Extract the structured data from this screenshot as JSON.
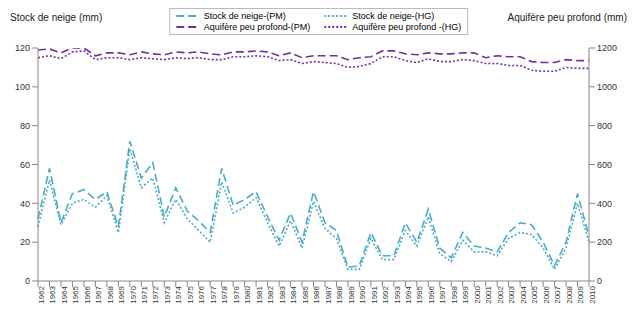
{
  "chart_data": {
    "type": "line",
    "y_label": "Stock de neige (mm)",
    "y2_label": "Aquifère peu profond (mm)",
    "categories": [
      "1962",
      "1963",
      "1964",
      "1965",
      "1966",
      "1967",
      "1968",
      "1969",
      "1970",
      "1971",
      "1972",
      "1973",
      "1974",
      "1975",
      "1976",
      "1977",
      "1978",
      "1979",
      "1980",
      "1981",
      "1982",
      "1983",
      "1984",
      "1985",
      "1986",
      "1987",
      "1988",
      "1989",
      "1990",
      "1991",
      "1992",
      "1993",
      "1994",
      "1995",
      "1996",
      "1997",
      "1998",
      "1999",
      "2000",
      "2001",
      "2002",
      "2003",
      "2004",
      "2005",
      "2006",
      "2007",
      "2008",
      "2009",
      "2010"
    ],
    "ylim": [
      0,
      120
    ],
    "yticks": [
      0,
      20,
      40,
      60,
      80,
      100,
      120
    ],
    "y2lim": [
      0,
      1200
    ],
    "y2ticks": [
      0,
      200,
      400,
      600,
      800,
      1000,
      1200
    ],
    "grid": false,
    "legend": "top",
    "series": [
      {
        "name": "Stock de neige-(PM)",
        "color": "#4bacc6",
        "line_style": "dashed",
        "values": [
          32,
          58,
          30,
          45,
          47,
          42,
          46,
          28,
          72,
          53,
          61,
          33,
          48,
          36,
          31,
          25,
          58,
          39,
          42,
          46,
          33,
          21,
          35,
          20,
          46,
          30,
          26,
          7,
          8,
          25,
          13,
          13,
          30,
          20,
          37,
          17,
          12,
          25,
          18,
          17,
          15,
          25,
          30,
          29,
          20,
          8,
          20,
          45,
          23
        ]
      },
      {
        "name": "Stock de neige-(HG)",
        "color": "#4bacc6",
        "line_style": "dotted",
        "values": [
          28,
          52,
          29,
          40,
          42,
          38,
          44,
          25,
          68,
          48,
          53,
          30,
          42,
          32,
          26,
          20,
          51,
          35,
          38,
          43,
          30,
          18,
          31,
          17,
          41,
          27,
          22,
          6,
          6,
          22,
          11,
          11,
          26,
          18,
          33,
          14,
          10,
          21,
          15,
          15,
          13,
          22,
          25,
          24,
          17,
          6,
          17,
          40,
          20
        ]
      },
      {
        "name": "Aquifère peu profond-(PM)",
        "color": "#7030a0",
        "line_style": "dashed",
        "axis": "y2",
        "values": [
          1190,
          1195,
          1175,
          1200,
          1200,
          1160,
          1175,
          1175,
          1165,
          1180,
          1170,
          1165,
          1180,
          1175,
          1180,
          1170,
          1165,
          1180,
          1180,
          1185,
          1180,
          1160,
          1175,
          1150,
          1160,
          1160,
          1160,
          1140,
          1150,
          1155,
          1185,
          1185,
          1170,
          1165,
          1175,
          1170,
          1170,
          1175,
          1175,
          1150,
          1160,
          1155,
          1155,
          1130,
          1125,
          1125,
          1140,
          1135,
          1135
        ]
      },
      {
        "name": "Aquifère peu profond -(HG)",
        "color": "#7030a0",
        "line_style": "dotted",
        "axis": "y2",
        "values": [
          1150,
          1160,
          1145,
          1180,
          1185,
          1140,
          1150,
          1150,
          1140,
          1150,
          1145,
          1140,
          1150,
          1145,
          1150,
          1140,
          1140,
          1155,
          1155,
          1160,
          1155,
          1135,
          1140,
          1120,
          1130,
          1125,
          1120,
          1100,
          1105,
          1120,
          1155,
          1155,
          1135,
          1125,
          1145,
          1130,
          1130,
          1140,
          1135,
          1120,
          1120,
          1110,
          1110,
          1085,
          1080,
          1080,
          1100,
          1095,
          1095
        ]
      }
    ]
  }
}
